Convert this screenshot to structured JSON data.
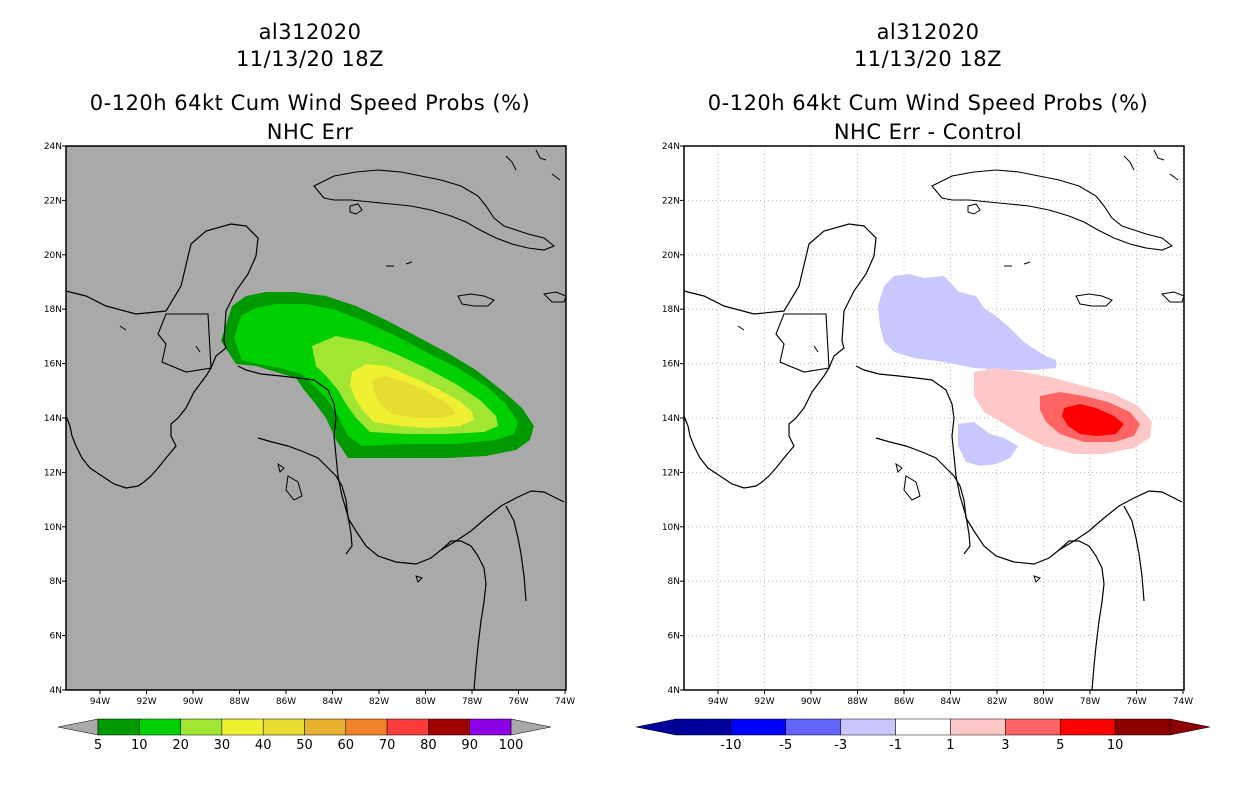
{
  "left_panel": {
    "storm_id": "al312020",
    "datetime": "11/13/20 18Z",
    "product": "0-120h 64kt Cum Wind Speed Probs (%)",
    "subtitle": "NHC Err",
    "background_color": "#a9a9a9",
    "colorbar": {
      "labels": [
        "5",
        "10",
        "20",
        "30",
        "40",
        "50",
        "60",
        "70",
        "80",
        "90",
        "100"
      ],
      "colors": [
        "#009a00",
        "#00d000",
        "#a0e632",
        "#f0f032",
        "#e6dc32",
        "#e6af2d",
        "#f08228",
        "#fa3c3c",
        "#a00000",
        "#8c00e6"
      ]
    }
  },
  "right_panel": {
    "storm_id": "al312020",
    "datetime": "11/13/20 18Z",
    "product": "0-120h 64kt Cum Wind Speed Probs (%)",
    "subtitle": "NHC Err - Control",
    "background_color": "#ffffff",
    "colorbar": {
      "labels": [
        "-10",
        "-5",
        "-3",
        "-1",
        "1",
        "3",
        "5",
        "10"
      ],
      "colors": [
        "#00009c",
        "#0000ff",
        "#6464ff",
        "#c8c8ff",
        "#ffffff",
        "#ffc8c8",
        "#ff6464",
        "#ff0000",
        "#8c0000"
      ]
    }
  },
  "map": {
    "lat_labels": [
      "24N",
      "22N",
      "20N",
      "18N",
      "16N",
      "14N",
      "12N",
      "10N",
      "8N",
      "6N",
      "4N"
    ],
    "lon_labels": [
      "94W",
      "92W",
      "90W",
      "88W",
      "86W",
      "84W",
      "82W",
      "80W",
      "78W",
      "76W",
      "74W"
    ]
  }
}
